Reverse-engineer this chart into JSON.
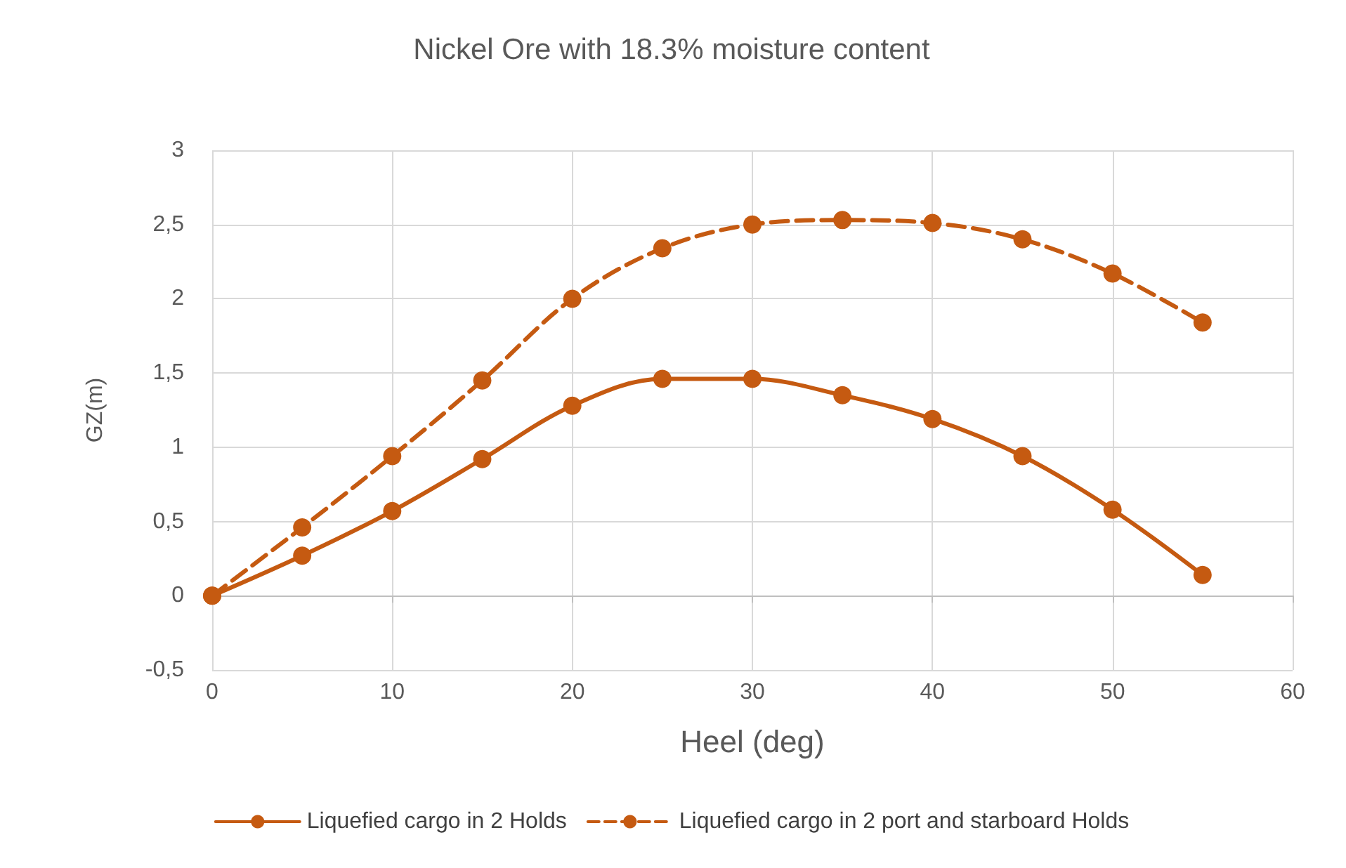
{
  "chart_data": {
    "type": "line",
    "title": "Nickel Ore with 18.3% moisture content",
    "xlabel": "Heel (deg)",
    "ylabel": "GZ(m)",
    "x": [
      0,
      5,
      10,
      15,
      20,
      25,
      30,
      35,
      40,
      45,
      50,
      55
    ],
    "series": [
      {
        "name": "Liquefied cargo in 2 Holds",
        "color": "#c55a11",
        "line_style": "solid",
        "values": [
          0,
          0.27,
          0.57,
          0.92,
          1.28,
          1.46,
          1.46,
          1.35,
          1.19,
          0.94,
          0.58,
          0.14
        ]
      },
      {
        "name": "Liquefied cargo in 2 port and starboard Holds",
        "color": "#c55a11",
        "line_style": "dashed",
        "values": [
          0,
          0.46,
          0.94,
          1.45,
          2.0,
          2.34,
          2.5,
          2.53,
          2.51,
          2.4,
          2.17,
          1.84
        ]
      }
    ],
    "xlim": [
      0,
      60
    ],
    "xticks": [
      0,
      10,
      20,
      30,
      40,
      50,
      60
    ],
    "ylim": [
      -0.5,
      3
    ],
    "yticks": [
      {
        "value": -0.5,
        "label": "-0,5"
      },
      0,
      {
        "value": 0.5,
        "label": "0,5"
      },
      1,
      {
        "value": 1.5,
        "label": "1,5"
      },
      2,
      {
        "value": 2.5,
        "label": "2,5"
      },
      3
    ],
    "grid": true,
    "legend": "bottom",
    "marker": "circle"
  }
}
